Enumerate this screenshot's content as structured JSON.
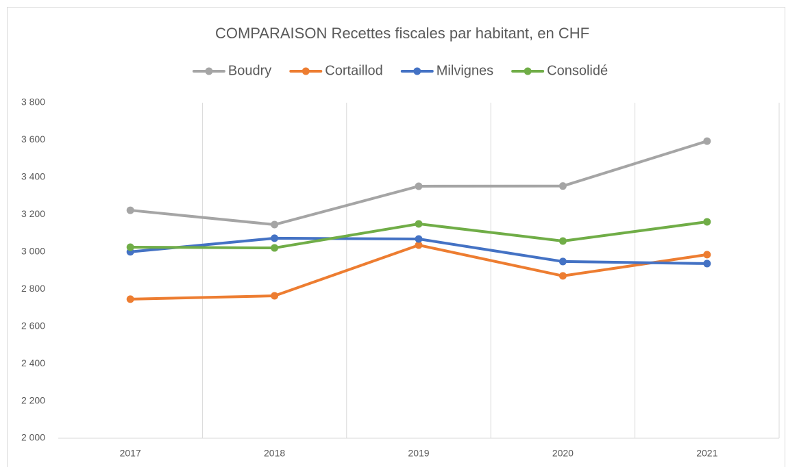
{
  "chart_data": {
    "type": "line",
    "title": "COMPARAISON Recettes fiscales par habitant, en CHF",
    "categories": [
      "2017",
      "2018",
      "2019",
      "2020",
      "2021"
    ],
    "series": [
      {
        "name": "Boudry",
        "color": "#a5a5a5",
        "values": [
          3223,
          3146,
          3352,
          3353,
          3594
        ]
      },
      {
        "name": "Cortaillod",
        "color": "#ed7d31",
        "values": [
          2746,
          2764,
          3036,
          2871,
          2985
        ]
      },
      {
        "name": "Milvignes",
        "color": "#4472c4",
        "values": [
          3000,
          3073,
          3069,
          2948,
          2937
        ]
      },
      {
        "name": "Consolidé",
        "color": "#70ad47",
        "values": [
          3025,
          3021,
          3150,
          3058,
          3161
        ]
      }
    ],
    "ylim": [
      2000,
      3800
    ],
    "yticks": [
      {
        "value": 2000,
        "label": "2 000"
      },
      {
        "value": 2200,
        "label": "2 200"
      },
      {
        "value": 2400,
        "label": "2 400"
      },
      {
        "value": 2600,
        "label": "2 600"
      },
      {
        "value": 2800,
        "label": "2 800"
      },
      {
        "value": 3000,
        "label": "3 000"
      },
      {
        "value": 3200,
        "label": "3 200"
      },
      {
        "value": 3400,
        "label": "3 400"
      },
      {
        "value": 3600,
        "label": "3 600"
      },
      {
        "value": 3800,
        "label": "3 800"
      }
    ],
    "legend": "top"
  }
}
